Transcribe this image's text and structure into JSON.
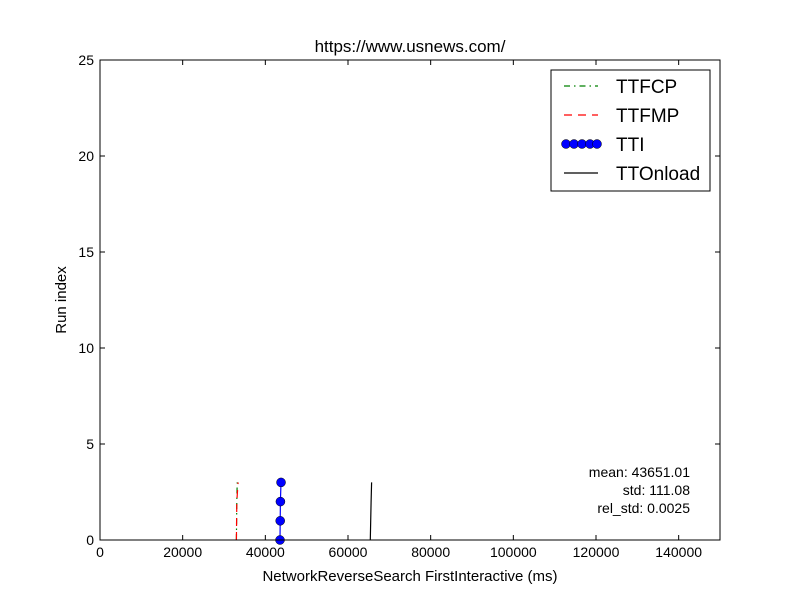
{
  "chart_data": {
    "type": "line",
    "title": "https://www.usnews.com/",
    "xlabel": "NetworkReverseSearch FirstInteractive (ms)",
    "ylabel": "Run index",
    "xlim": [
      0,
      150000
    ],
    "ylim": [
      0,
      25
    ],
    "xticks": [
      0,
      20000,
      40000,
      60000,
      80000,
      100000,
      120000,
      140000
    ],
    "yticks": [
      0,
      5,
      10,
      15,
      20,
      25
    ],
    "xtick_labels": [
      "0",
      "20000",
      "40000",
      "60000",
      "80000",
      "100000",
      "120000",
      "140000"
    ],
    "ytick_labels": [
      "0",
      "5",
      "10",
      "15",
      "20",
      "25"
    ],
    "grid": false,
    "legend_position": "top-right",
    "series": [
      {
        "name": "TTFCP",
        "color": "#008000",
        "style": "dashdot",
        "marker": "none",
        "x": [
          33000,
          33050,
          33100,
          33200
        ],
        "y": [
          0,
          1,
          2,
          3
        ]
      },
      {
        "name": "TTFMP",
        "color": "#ff0000",
        "style": "dashed",
        "marker": "none",
        "x": [
          33000,
          33050,
          33100,
          33400
        ],
        "y": [
          0,
          1,
          2,
          3
        ]
      },
      {
        "name": "TTI",
        "color": "#0000ff",
        "style": "solid",
        "marker": "circle",
        "x": [
          43550,
          43600,
          43650,
          43800
        ],
        "y": [
          0,
          1,
          2,
          3
        ]
      },
      {
        "name": "TTOnload",
        "color": "#000000",
        "style": "solid",
        "marker": "none",
        "x": [
          65400,
          65500,
          65600,
          65700
        ],
        "y": [
          0,
          1,
          2,
          3
        ]
      }
    ],
    "stats": [
      "mean: 43651.01",
      "std: 111.08",
      "rel_std: 0.0025"
    ]
  }
}
